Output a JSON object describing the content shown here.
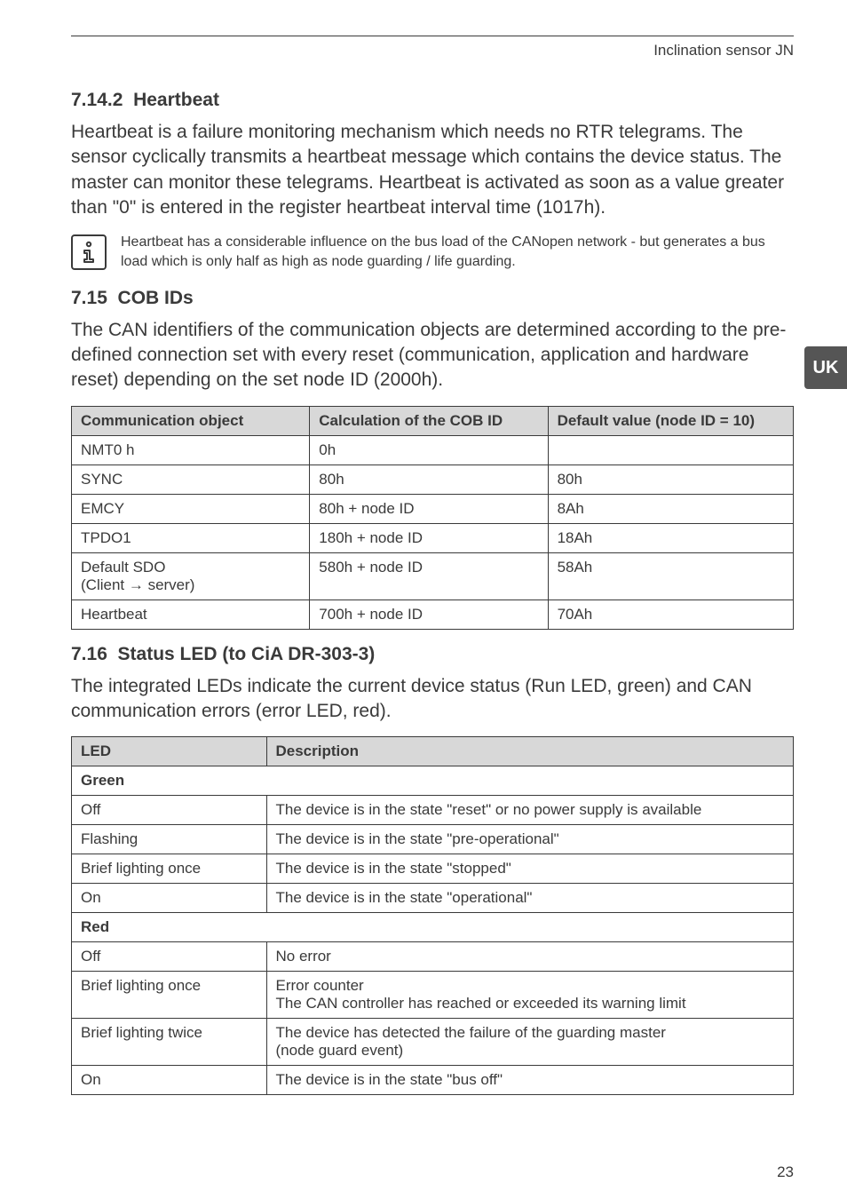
{
  "header": {
    "running_title": "Inclination sensor JN"
  },
  "side_tab": "UK",
  "sections": {
    "heartbeat": {
      "number": "7.14.2",
      "title": "Heartbeat",
      "body": "Heartbeat is a failure monitoring mechanism which needs no RTR telegrams. The sensor cyclically transmits a heartbeat message which contains the device status. The master can monitor these telegrams. Heartbeat is activated as soon as a value greater than \"0\" is entered in the register heartbeat interval time (1017h).",
      "note": "Heartbeat has a considerable influence on the bus load of the CANopen network - but generates a bus load which is only half as high as node guarding / life guarding."
    },
    "cob": {
      "number": "7.15",
      "title": "COB IDs",
      "body": "The CAN identifiers of the communication objects are determined according to the pre-defined connection set with every reset (communication, application and hardware reset) depending on the set node ID (2000h).",
      "table": {
        "headers": [
          "Communication object",
          "Calculation of the COB ID",
          "Default value (node ID = 10)"
        ],
        "rows": [
          [
            "NMT0 h",
            "0h",
            ""
          ],
          [
            "SYNC",
            "80h",
            "80h"
          ],
          [
            "EMCY",
            "80h + node ID",
            "8Ah"
          ],
          [
            "TPDO1",
            "180h + node ID",
            "18Ah"
          ],
          [
            "Default SDO\n(Client → server)",
            "580h + node ID",
            "58Ah"
          ],
          [
            "Heartbeat",
            "700h + node ID",
            "70Ah"
          ]
        ]
      }
    },
    "led": {
      "number": "7.16",
      "title": "Status LED (to CiA DR-303-3)",
      "body": "The integrated LEDs indicate the current device status (Run LED, green) and CAN communication errors (error LED, red).",
      "table": {
        "headers": [
          "LED",
          "Description"
        ],
        "green_label": "Green",
        "green_rows": [
          [
            "Off",
            "The device is in the state \"reset\" or no power supply is available"
          ],
          [
            "Flashing",
            "The device is in the state \"pre-operational\""
          ],
          [
            "Brief lighting once",
            "The device is in the state \"stopped\""
          ],
          [
            "On",
            "The device is in the state \"operational\""
          ]
        ],
        "red_label": "Red",
        "red_rows": [
          [
            "Off",
            "No error"
          ],
          [
            "Brief lighting once",
            "Error counter\nThe CAN controller has reached or exceeded its warning limit"
          ],
          [
            "Brief lighting twice",
            "The device has detected the failure of the guarding master\n(node guard event)"
          ],
          [
            "On",
            "The device is in the state \"bus off\""
          ]
        ]
      }
    }
  },
  "page_number": "23"
}
